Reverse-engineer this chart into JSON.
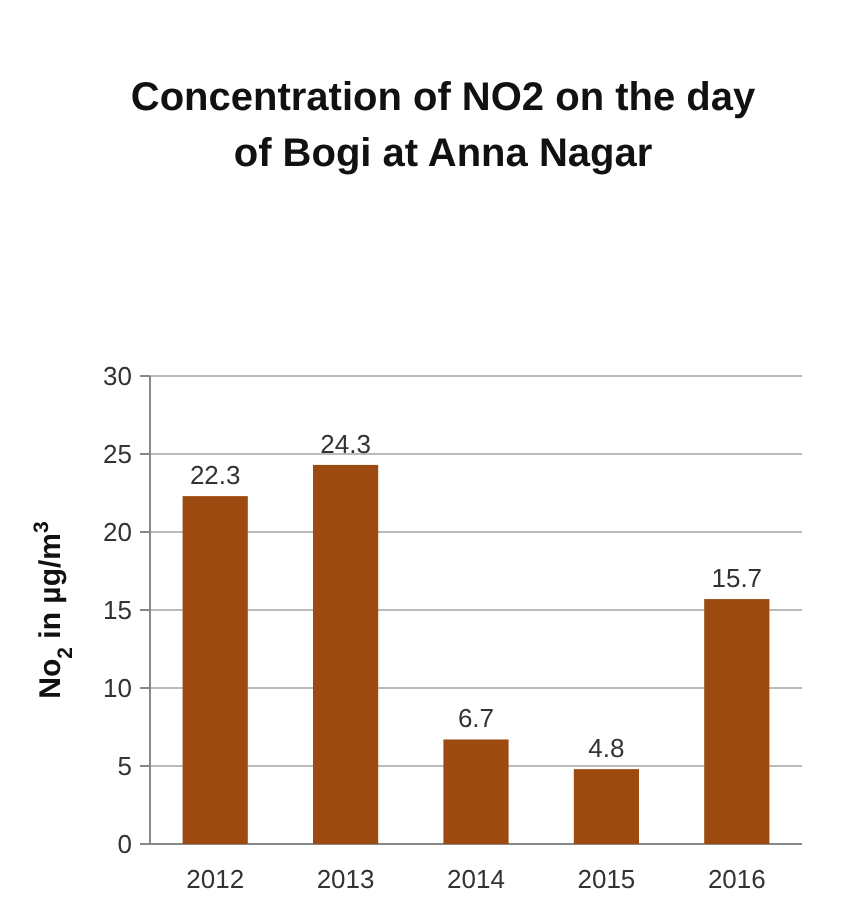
{
  "chart_data": {
    "type": "bar",
    "title": "Concentration of NO2 on the day of Bogi at Anna Nagar",
    "ylabel": "No$_{2}$ in µg/m$^{3}$",
    "categories": [
      "2012",
      "2013",
      "2014",
      "2015",
      "2016"
    ],
    "values": [
      22.3,
      24.3,
      6.7,
      4.8,
      15.7
    ],
    "color": "#9c4a10",
    "ylim": [
      0,
      30
    ],
    "yticks": [
      0,
      5,
      10,
      15,
      20,
      25,
      30
    ],
    "grid": "y",
    "data_labels": true
  }
}
